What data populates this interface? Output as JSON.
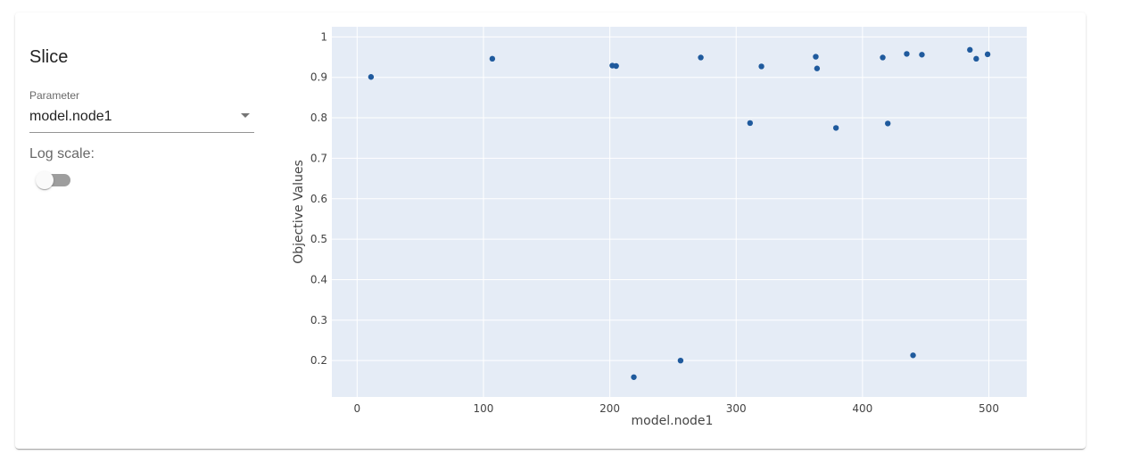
{
  "sidebar": {
    "title": "Slice",
    "parameter_label": "Parameter",
    "parameter_value": "model.node1",
    "log_scale_label": "Log scale:",
    "log_scale_enabled": false
  },
  "colors": {
    "plot_background": "#e5ecf6",
    "gridline": "#ffffff",
    "marker": "#1f5a9d"
  },
  "chart_data": {
    "type": "scatter",
    "title": "",
    "xlabel": "model.node1",
    "ylabel": "Objective Values",
    "xlim": [
      -20,
      530
    ],
    "ylim": [
      0.11,
      1.025
    ],
    "xticks": [
      0,
      100,
      200,
      300,
      400,
      500
    ],
    "yticks": [
      0.2,
      0.3,
      0.4,
      0.5,
      0.6,
      0.7,
      0.8,
      0.9,
      1
    ],
    "ytick_labels": [
      "0.2",
      "0.3",
      "0.4",
      "0.5",
      "0.6",
      "0.7",
      "0.8",
      "0.9",
      "1"
    ],
    "grid": true,
    "x": [
      11,
      107,
      202,
      205,
      219,
      256,
      272,
      311,
      320,
      363,
      364,
      379,
      416,
      420,
      435,
      440,
      447,
      485,
      490,
      499
    ],
    "y": [
      0.901,
      0.946,
      0.929,
      0.928,
      0.159,
      0.2,
      0.949,
      0.787,
      0.927,
      0.951,
      0.922,
      0.775,
      0.949,
      0.786,
      0.958,
      0.213,
      0.956,
      0.968,
      0.946,
      0.957
    ]
  }
}
